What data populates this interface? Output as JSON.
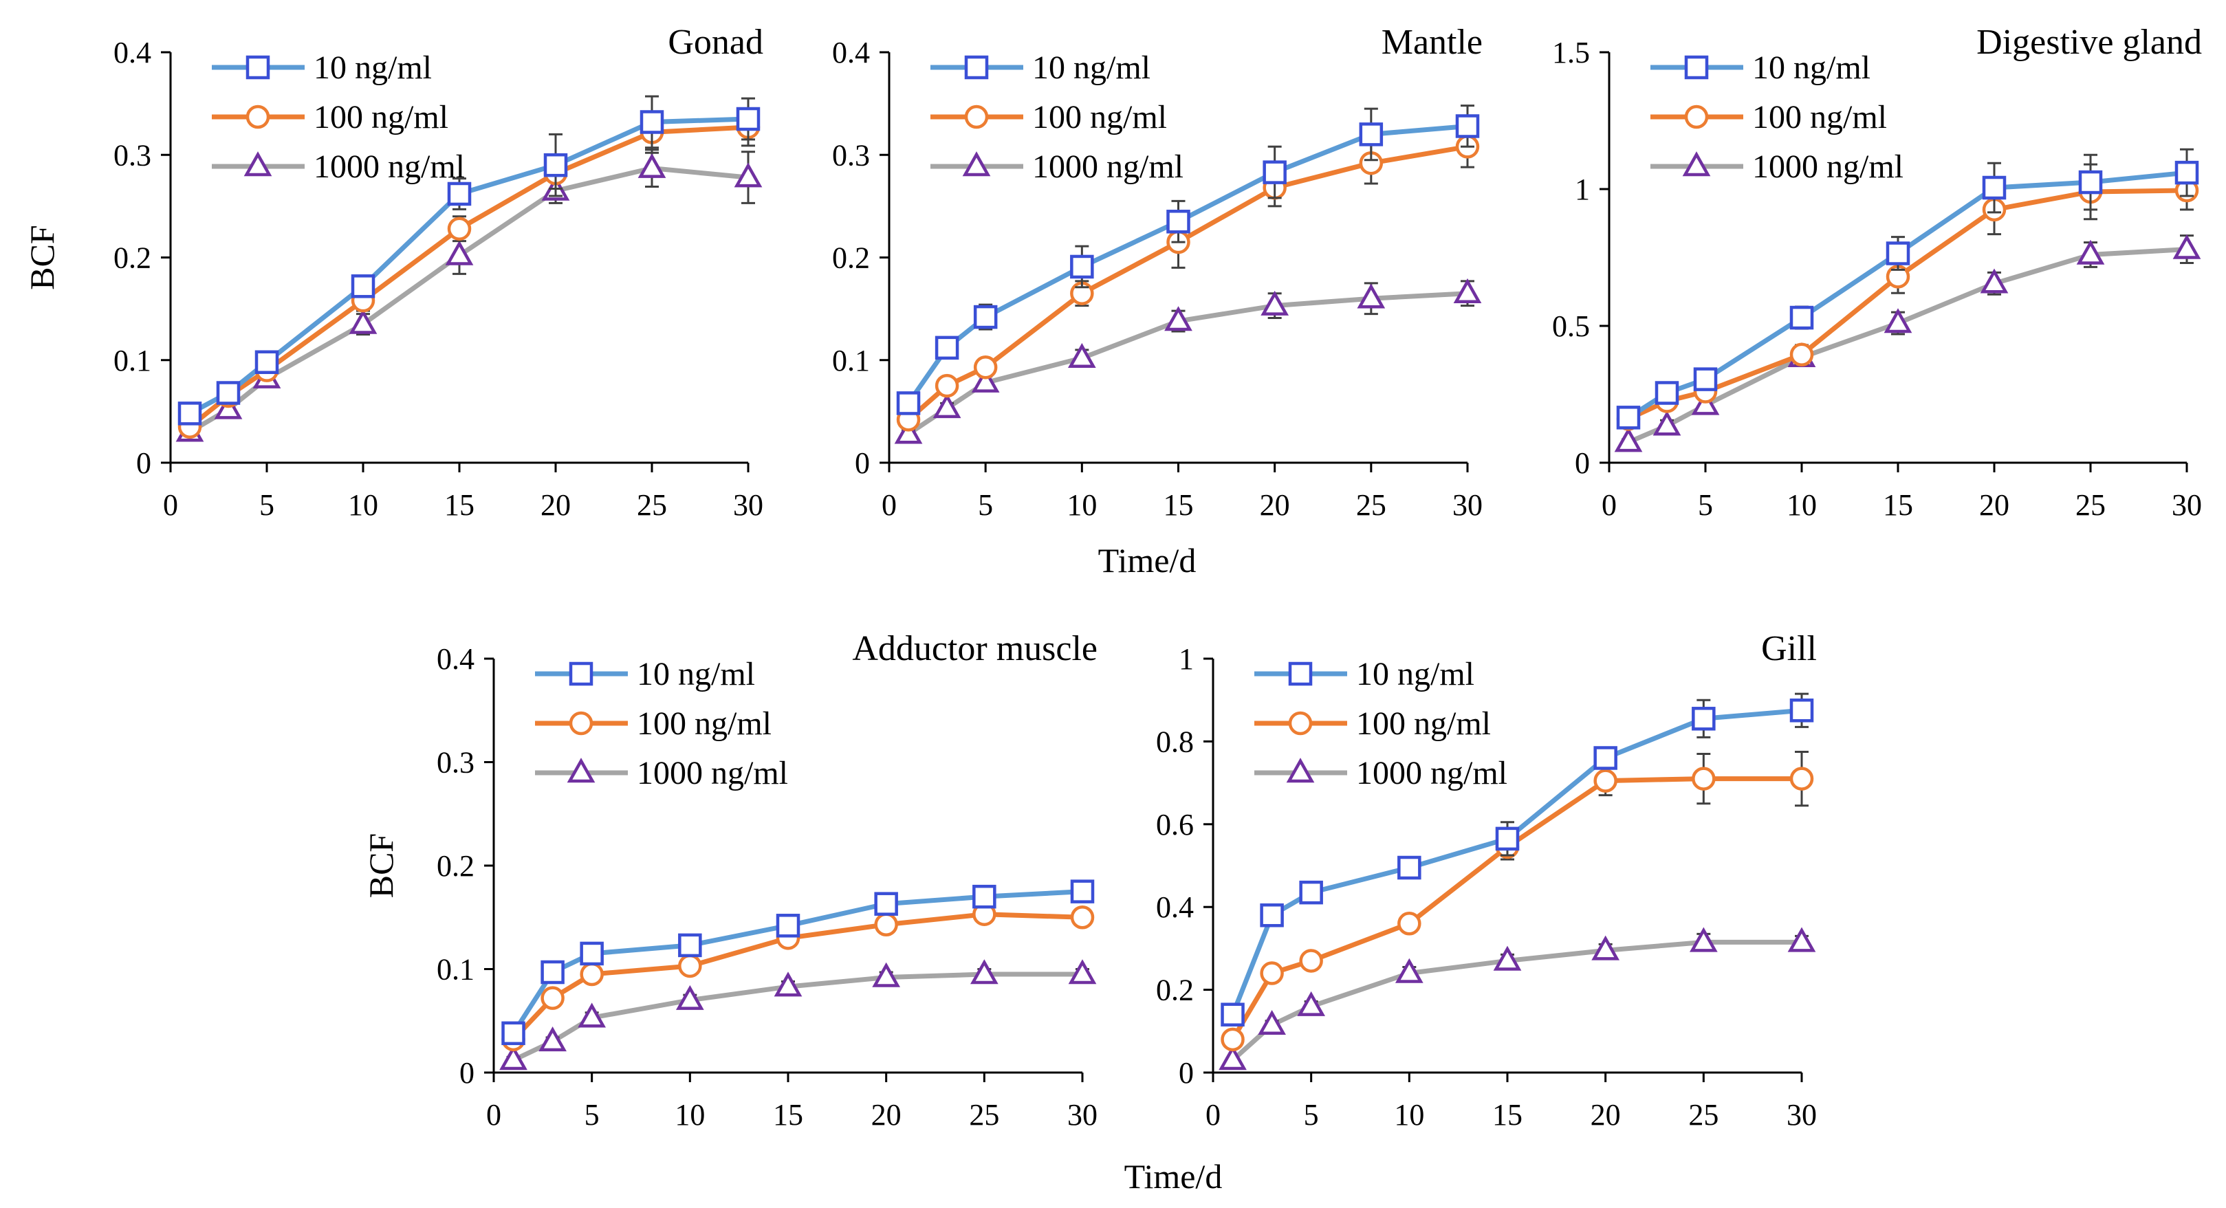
{
  "figure": {
    "shared_xlabel_top": "Time/d",
    "shared_xlabel_bottom": "Time/d",
    "ylabel": "BCF",
    "legend": [
      "10 ng/ml",
      "100 ng/ml",
      "1000 ng/ml"
    ],
    "colors": {
      "s10_line": "#5b9bd5",
      "s10_marker": "#3a4fd6",
      "s100_line": "#ed7d31",
      "s100_marker": "#ed7d31",
      "s1000_line": "#a5a5a5",
      "s1000_marker": "#7030a0",
      "errorbar": "#404040",
      "axis": "#000000"
    }
  },
  "chart_data": [
    {
      "type": "line",
      "title": "Gonad",
      "xlabel": "Time/d",
      "ylabel": "BCF",
      "x": [
        1,
        3,
        5,
        10,
        15,
        20,
        25,
        30
      ],
      "xticks": [
        "0",
        "5",
        "10",
        "15",
        "20",
        "25",
        "30"
      ],
      "yticks": [
        "0",
        "0.1",
        "0.2",
        "0.3",
        "0.4"
      ],
      "xlim": [
        0,
        30
      ],
      "ylim": [
        0,
        0.4
      ],
      "legend_position": "top-left",
      "series": [
        {
          "name": "10 ng/ml",
          "values": [
            0.048,
            0.068,
            0.098,
            0.172,
            0.262,
            0.29,
            0.332,
            0.335
          ],
          "errors": [
            0.005,
            0.005,
            0.008,
            0.01,
            0.015,
            0.03,
            0.025,
            0.02
          ]
        },
        {
          "name": "100 ng/ml",
          "values": [
            0.035,
            0.065,
            0.09,
            0.158,
            0.228,
            0.282,
            0.322,
            0.327
          ],
          "errors": [
            0.005,
            0.005,
            0.008,
            0.01,
            0.012,
            0.015,
            0.02,
            0.018
          ]
        },
        {
          "name": "1000 ng/ml",
          "values": [
            0.03,
            0.052,
            0.082,
            0.135,
            0.202,
            0.265,
            0.287,
            0.278
          ],
          "errors": [
            0.004,
            0.005,
            0.006,
            0.01,
            0.018,
            0.012,
            0.018,
            0.025
          ]
        }
      ]
    },
    {
      "type": "line",
      "title": "Mantle",
      "xlabel": "Time/d",
      "ylabel": "",
      "x": [
        1,
        3,
        5,
        10,
        15,
        20,
        25,
        30
      ],
      "xticks": [
        "0",
        "5",
        "10",
        "15",
        "20",
        "25",
        "30"
      ],
      "yticks": [
        "0",
        "0.1",
        "0.2",
        "0.3",
        "0.4"
      ],
      "xlim": [
        0,
        30
      ],
      "ylim": [
        0,
        0.4
      ],
      "legend_position": "top-left",
      "series": [
        {
          "name": "10 ng/ml",
          "values": [
            0.058,
            0.112,
            0.142,
            0.191,
            0.235,
            0.283,
            0.32,
            0.328
          ],
          "errors": [
            0.005,
            0.006,
            0.012,
            0.02,
            0.02,
            0.025,
            0.025,
            0.02
          ]
        },
        {
          "name": "100 ng/ml",
          "values": [
            0.042,
            0.075,
            0.093,
            0.165,
            0.215,
            0.268,
            0.292,
            0.308
          ],
          "errors": [
            0.005,
            0.005,
            0.008,
            0.012,
            0.025,
            0.018,
            0.02,
            0.02
          ]
        },
        {
          "name": "1000 ng/ml",
          "values": [
            0.028,
            0.053,
            0.078,
            0.102,
            0.138,
            0.153,
            0.16,
            0.165
          ],
          "errors": [
            0.004,
            0.005,
            0.006,
            0.008,
            0.01,
            0.012,
            0.015,
            0.012
          ]
        }
      ]
    },
    {
      "type": "line",
      "title": "Digestive gland",
      "xlabel": "Time/d",
      "ylabel": "",
      "x": [
        1,
        3,
        5,
        10,
        15,
        20,
        25,
        30
      ],
      "xticks": [
        "0",
        "5",
        "10",
        "15",
        "20",
        "25",
        "30"
      ],
      "yticks": [
        "0",
        "0.5",
        "1",
        "1.5"
      ],
      "xlim": [
        0,
        30
      ],
      "ylim": [
        0,
        1.5
      ],
      "legend_position": "top-left",
      "series": [
        {
          "name": "10 ng/ml",
          "values": [
            0.165,
            0.255,
            0.305,
            0.53,
            0.765,
            1.005,
            1.025,
            1.06
          ],
          "errors": [
            0.02,
            0.025,
            0.03,
            0.04,
            0.06,
            0.09,
            0.1,
            0.085
          ]
        },
        {
          "name": "100 ng/ml",
          "values": [
            0.16,
            0.225,
            0.26,
            0.395,
            0.68,
            0.925,
            0.99,
            0.995
          ],
          "errors": [
            0.02,
            0.025,
            0.03,
            0.035,
            0.06,
            0.09,
            0.1,
            0.07
          ]
        },
        {
          "name": "1000 ng/ml",
          "values": [
            0.075,
            0.135,
            0.21,
            0.385,
            0.51,
            0.655,
            0.76,
            0.78
          ],
          "errors": [
            0.01,
            0.02,
            0.025,
            0.03,
            0.04,
            0.04,
            0.045,
            0.05
          ]
        }
      ]
    },
    {
      "type": "line",
      "title": "Adductor muscle",
      "xlabel": "Time/d",
      "ylabel": "BCF",
      "x": [
        1,
        3,
        5,
        10,
        15,
        20,
        25,
        30
      ],
      "xticks": [
        "0",
        "5",
        "10",
        "15",
        "20",
        "25",
        "30"
      ],
      "yticks": [
        "0",
        "0.1",
        "0.2",
        "0.3",
        "0.4"
      ],
      "xlim": [
        0,
        30
      ],
      "ylim": [
        0,
        0.4
      ],
      "legend_position": "top-left",
      "series": [
        {
          "name": "10 ng/ml",
          "values": [
            0.038,
            0.097,
            0.115,
            0.123,
            0.142,
            0.163,
            0.17,
            0.175
          ],
          "errors": [
            0.004,
            0.006,
            0.006,
            0.006,
            0.006,
            0.006,
            0.006,
            0.006
          ]
        },
        {
          "name": "100 ng/ml",
          "values": [
            0.032,
            0.072,
            0.095,
            0.103,
            0.13,
            0.143,
            0.153,
            0.15
          ],
          "errors": [
            0.004,
            0.005,
            0.006,
            0.006,
            0.006,
            0.006,
            0.008,
            0.008
          ]
        },
        {
          "name": "1000 ng/ml",
          "values": [
            0.012,
            0.03,
            0.053,
            0.07,
            0.083,
            0.092,
            0.095,
            0.095
          ],
          "errors": [
            0.003,
            0.004,
            0.005,
            0.005,
            0.005,
            0.005,
            0.005,
            0.005
          ]
        }
      ]
    },
    {
      "type": "line",
      "title": "Gill",
      "xlabel": "Time/d",
      "ylabel": "",
      "x": [
        1,
        3,
        5,
        10,
        15,
        20,
        25,
        30
      ],
      "xticks": [
        "0",
        "5",
        "10",
        "15",
        "20",
        "25",
        "30"
      ],
      "yticks": [
        "0",
        "0.2",
        "0.4",
        "0.6",
        "0.8",
        "1"
      ],
      "xlim": [
        0,
        30
      ],
      "ylim": [
        0,
        1
      ],
      "legend_position": "top-left",
      "series": [
        {
          "name": "10 ng/ml",
          "values": [
            0.14,
            0.38,
            0.435,
            0.495,
            0.565,
            0.76,
            0.855,
            0.875
          ],
          "errors": [
            0.01,
            0.015,
            0.015,
            0.02,
            0.04,
            0.025,
            0.045,
            0.04
          ]
        },
        {
          "name": "100 ng/ml",
          "values": [
            0.08,
            0.24,
            0.27,
            0.36,
            0.545,
            0.705,
            0.71,
            0.71
          ],
          "errors": [
            0.01,
            0.015,
            0.015,
            0.02,
            0.03,
            0.035,
            0.06,
            0.065
          ]
        },
        {
          "name": "1000 ng/ml",
          "values": [
            0.03,
            0.115,
            0.16,
            0.24,
            0.27,
            0.295,
            0.315,
            0.315
          ],
          "errors": [
            0.005,
            0.01,
            0.012,
            0.015,
            0.015,
            0.015,
            0.02,
            0.015
          ]
        }
      ]
    }
  ]
}
